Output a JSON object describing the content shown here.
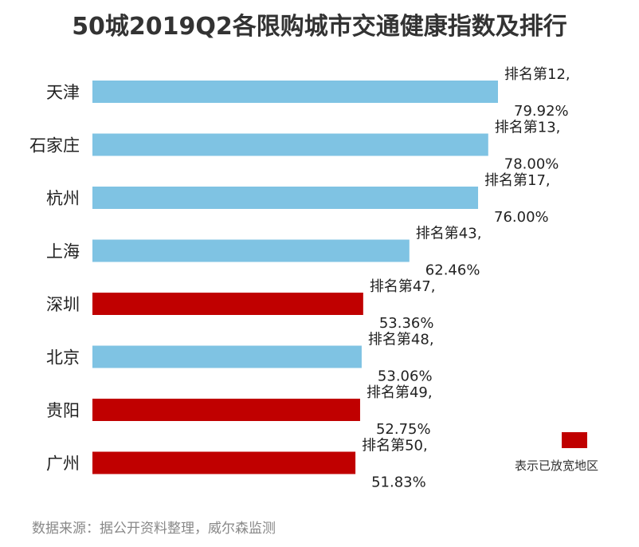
{
  "title": "50城2019Q2各限购城市交通健康指数及排行",
  "source": "数据来源：据公开资料整理，威尔森监测",
  "legend": {
    "label": "表示已放宽地区",
    "color": "#c00000"
  },
  "colors": {
    "normal": "#7fc3e3",
    "relaxed": "#c00000"
  },
  "chart_data": {
    "type": "bar",
    "orientation": "horizontal",
    "title": "50城2019Q2各限购城市交通健康指数及排行",
    "xlim": [
      0,
      100
    ],
    "grid": false,
    "legend_position": "bottom-right",
    "categories": [
      "天津",
      "石家庄",
      "杭州",
      "上海",
      "深圳",
      "北京",
      "贵阳",
      "广州"
    ],
    "values": [
      79.92,
      78.0,
      76.0,
      62.46,
      53.36,
      53.06,
      52.75,
      51.83
    ],
    "rank_labels": [
      "排名第12,",
      "排名第13,",
      "排名第17,",
      "排名第43,",
      "排名第47,",
      "排名第48,",
      "排名第49,",
      "排名第50,"
    ],
    "value_labels": [
      "79.92%",
      "78.00%",
      "76.00%",
      "62.46%",
      "53.36%",
      "53.06%",
      "52.75%",
      "51.83%"
    ],
    "relaxed": [
      false,
      false,
      false,
      false,
      true,
      false,
      true,
      true
    ]
  }
}
